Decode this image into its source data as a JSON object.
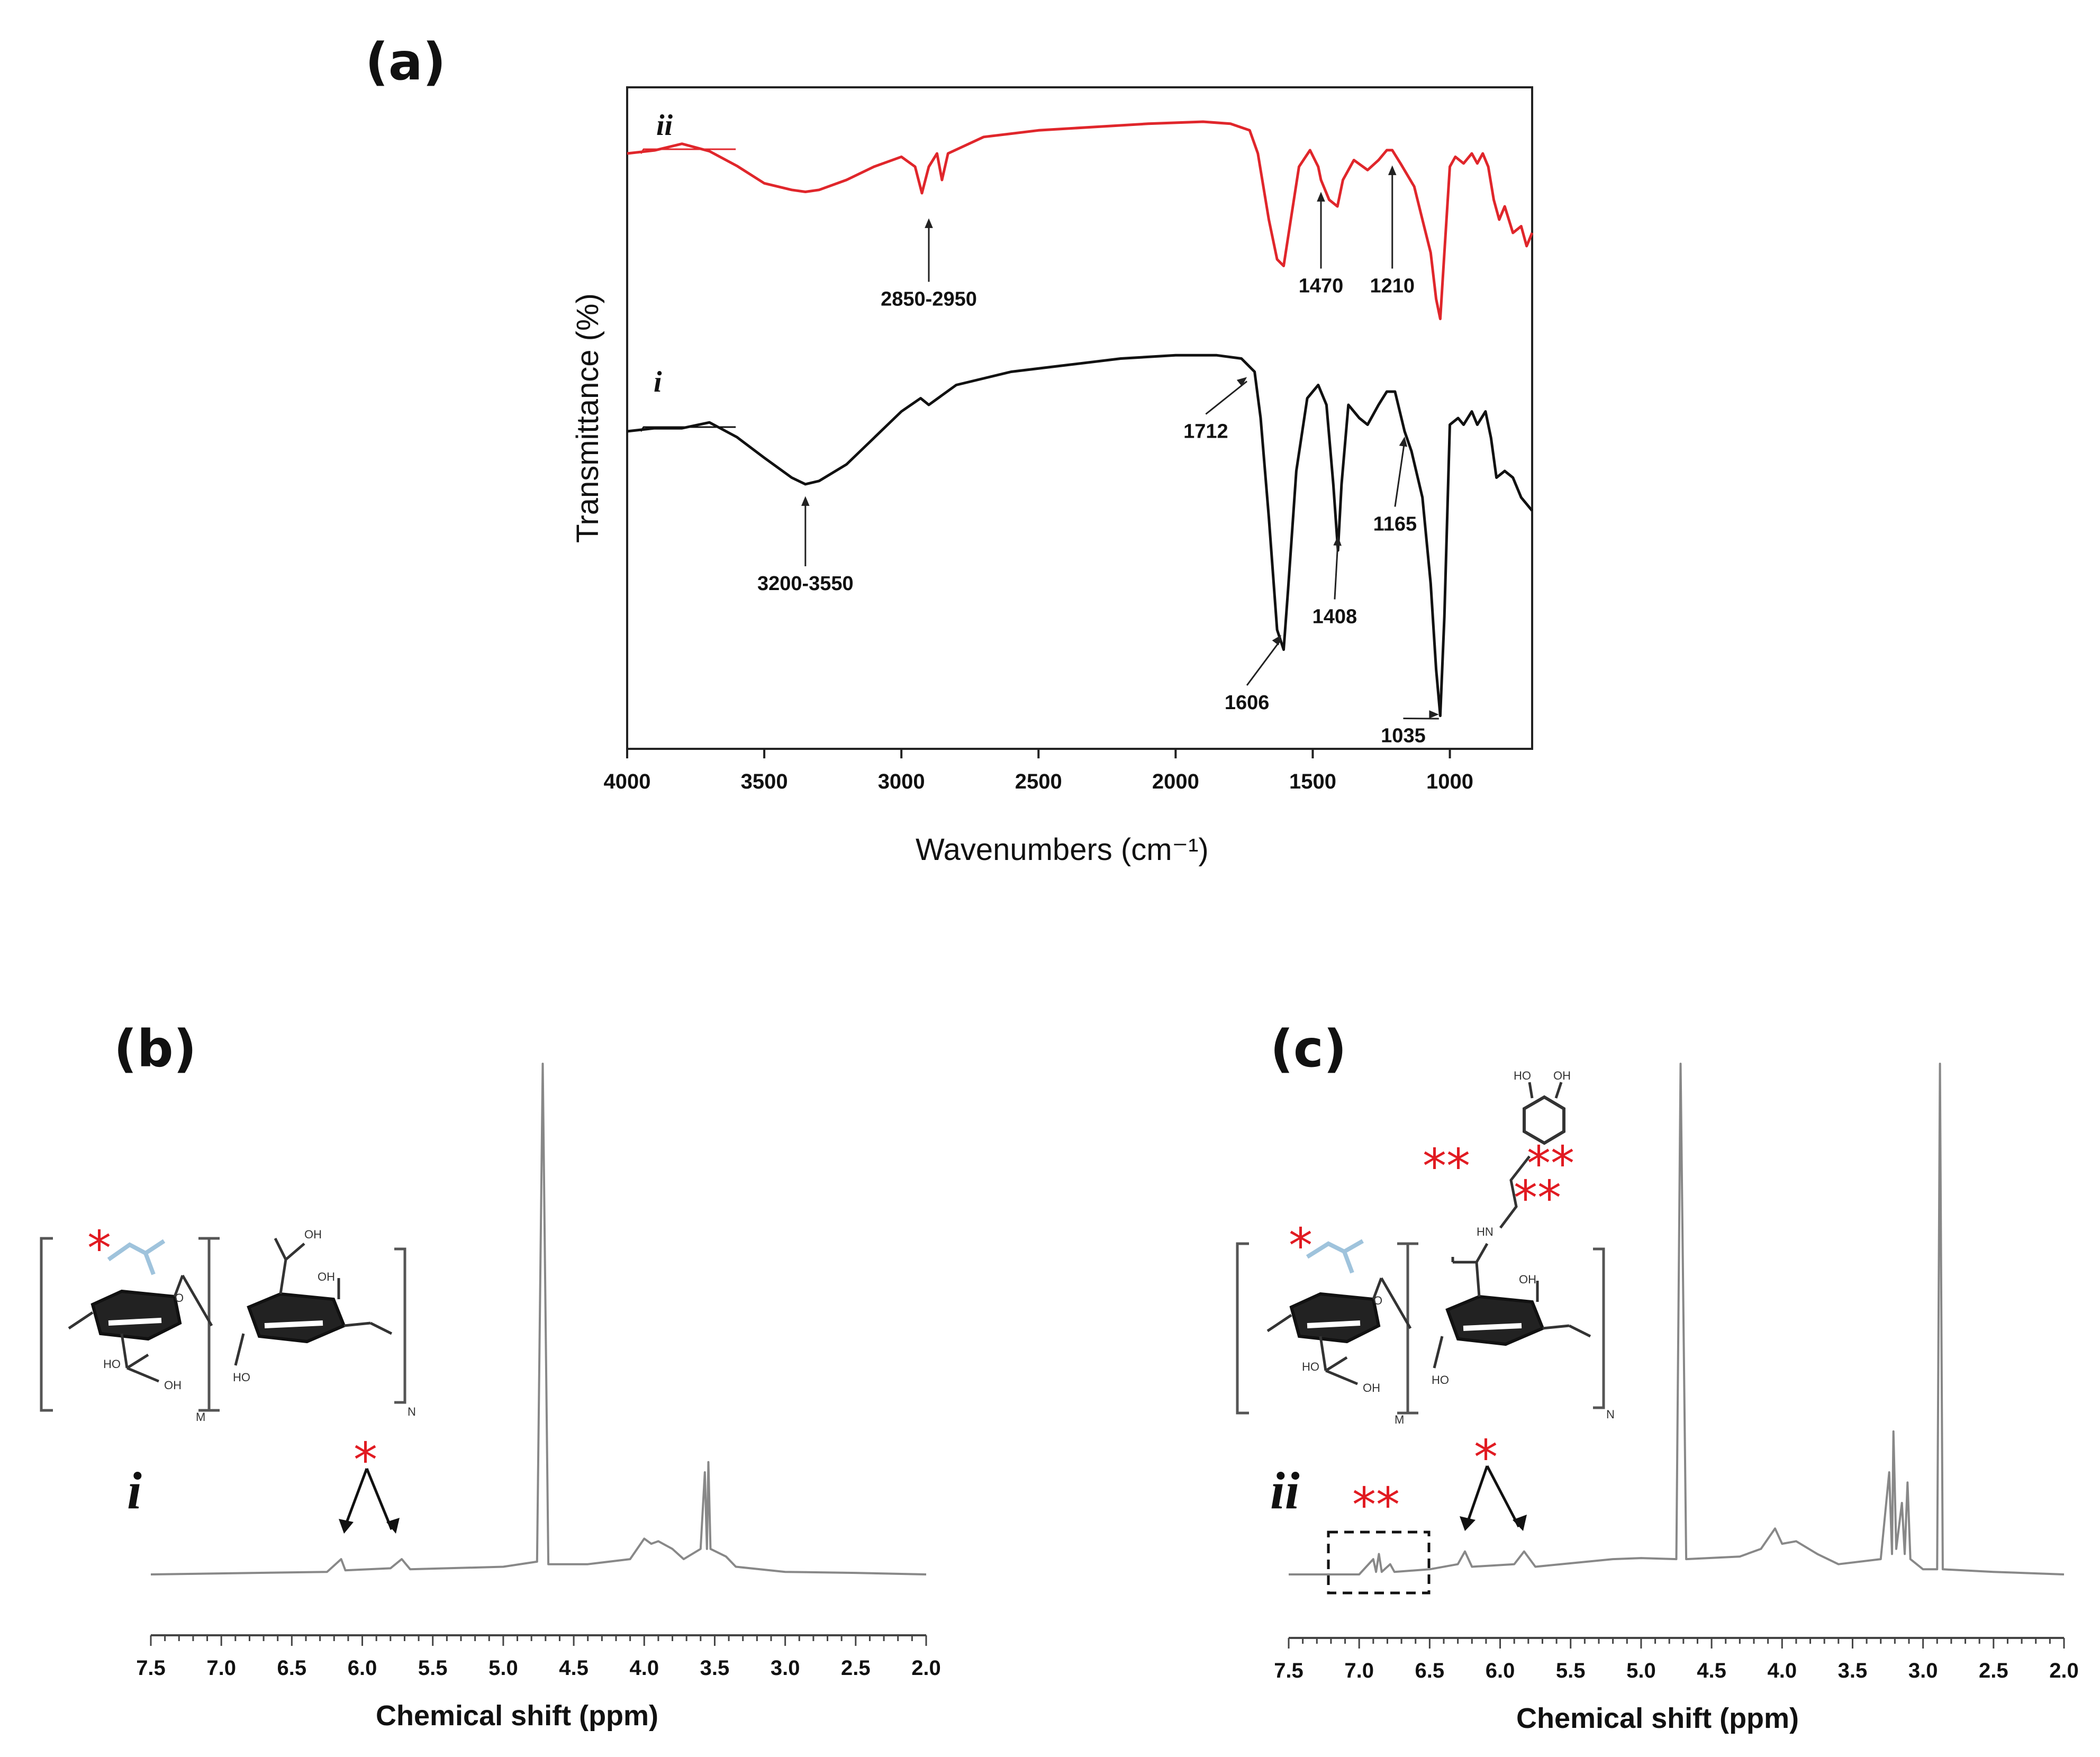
{
  "panel_a_label": "(a)",
  "panel_b_label": "(b)",
  "panel_c_label": "(c)",
  "colors": {
    "series_i": "#111111",
    "series_ii": "#e0262b",
    "nmr": "#888888",
    "star": "#e11b22",
    "structure_faded": "#9fc3dc"
  },
  "chart_data": [
    {
      "id": "ftir",
      "type": "line",
      "title": "",
      "xlabel": "Wavenumbers (cm⁻¹)",
      "ylabel": "Transmittance (%)",
      "xlim": [
        4000,
        700
      ],
      "xticks": [
        4000,
        3500,
        3000,
        2500,
        2000,
        1500,
        1000
      ],
      "ylim": [
        0,
        100
      ],
      "grid": false,
      "series": [
        {
          "name": "i",
          "label": "i",
          "points": [
            [
              4000,
              48
            ],
            [
              3900,
              48
            ],
            [
              3800,
              48
            ],
            [
              3700,
              49
            ],
            [
              3600,
              47
            ],
            [
              3500,
              44
            ],
            [
              3400,
              41
            ],
            [
              3350,
              40
            ],
            [
              3300,
              40.5
            ],
            [
              3200,
              43
            ],
            [
              3100,
              47
            ],
            [
              3000,
              51
            ],
            [
              2930,
              53
            ],
            [
              2900,
              52
            ],
            [
              2800,
              55
            ],
            [
              2600,
              57
            ],
            [
              2400,
              58
            ],
            [
              2200,
              59
            ],
            [
              2000,
              59.5
            ],
            [
              1850,
              59.5
            ],
            [
              1760,
              59
            ],
            [
              1712,
              57
            ],
            [
              1690,
              50
            ],
            [
              1660,
              35
            ],
            [
              1630,
              18
            ],
            [
              1606,
              15
            ],
            [
              1590,
              24
            ],
            [
              1560,
              42
            ],
            [
              1520,
              53
            ],
            [
              1480,
              55
            ],
            [
              1450,
              52
            ],
            [
              1425,
              40
            ],
            [
              1408,
              30
            ],
            [
              1395,
              40
            ],
            [
              1370,
              52
            ],
            [
              1330,
              50
            ],
            [
              1300,
              49
            ],
            [
              1260,
              52
            ],
            [
              1230,
              54
            ],
            [
              1200,
              54
            ],
            [
              1165,
              48
            ],
            [
              1140,
              45
            ],
            [
              1100,
              38
            ],
            [
              1070,
              25
            ],
            [
              1050,
              12
            ],
            [
              1035,
              5
            ],
            [
              1020,
              20
            ],
            [
              1000,
              49
            ],
            [
              970,
              50
            ],
            [
              950,
              49
            ],
            [
              920,
              51
            ],
            [
              900,
              49
            ],
            [
              870,
              51
            ],
            [
              850,
              47
            ],
            [
              830,
              41
            ],
            [
              800,
              42
            ],
            [
              770,
              41
            ],
            [
              740,
              38
            ],
            [
              700,
              36
            ]
          ]
        },
        {
          "name": "ii",
          "label": "ii",
          "points": [
            [
              4000,
              90
            ],
            [
              3900,
              90
            ],
            [
              3800,
              91
            ],
            [
              3700,
              90
            ],
            [
              3600,
              88
            ],
            [
              3500,
              85.5
            ],
            [
              3400,
              84.5
            ],
            [
              3350,
              84.2
            ],
            [
              3300,
              84.5
            ],
            [
              3200,
              86
            ],
            [
              3100,
              88
            ],
            [
              3000,
              89.5
            ],
            [
              2950,
              88
            ],
            [
              2925,
              84
            ],
            [
              2900,
              88
            ],
            [
              2870,
              90
            ],
            [
              2852,
              86
            ],
            [
              2830,
              90
            ],
            [
              2700,
              92.5
            ],
            [
              2500,
              93.5
            ],
            [
              2300,
              94
            ],
            [
              2100,
              94.5
            ],
            [
              1900,
              94.8
            ],
            [
              1800,
              94.5
            ],
            [
              1730,
              93.5
            ],
            [
              1700,
              90
            ],
            [
              1660,
              80
            ],
            [
              1630,
              74
            ],
            [
              1606,
              73
            ],
            [
              1580,
              80
            ],
            [
              1550,
              88
            ],
            [
              1510,
              90.5
            ],
            [
              1480,
              88
            ],
            [
              1470,
              86
            ],
            [
              1440,
              83
            ],
            [
              1410,
              82
            ],
            [
              1390,
              86
            ],
            [
              1350,
              89
            ],
            [
              1300,
              87.5
            ],
            [
              1260,
              89
            ],
            [
              1230,
              90.5
            ],
            [
              1210,
              90.5
            ],
            [
              1180,
              88.5
            ],
            [
              1130,
              85
            ],
            [
              1100,
              80
            ],
            [
              1070,
              75
            ],
            [
              1050,
              68
            ],
            [
              1035,
              65
            ],
            [
              1020,
              75
            ],
            [
              1000,
              88
            ],
            [
              980,
              89.5
            ],
            [
              950,
              88.5
            ],
            [
              920,
              90
            ],
            [
              900,
              88.5
            ],
            [
              880,
              90
            ],
            [
              860,
              88
            ],
            [
              840,
              83
            ],
            [
              820,
              80
            ],
            [
              800,
              82
            ],
            [
              770,
              78
            ],
            [
              740,
              79
            ],
            [
              720,
              76
            ],
            [
              700,
              78
            ]
          ]
        }
      ],
      "annotations": [
        {
          "text": "2850-2950",
          "series": "ii"
        },
        {
          "text": "1470",
          "series": "ii"
        },
        {
          "text": "1210",
          "series": "ii"
        },
        {
          "text": "3200-3550",
          "series": "i"
        },
        {
          "text": "1712",
          "series": "i"
        },
        {
          "text": "1606",
          "series": "i"
        },
        {
          "text": "1408",
          "series": "i"
        },
        {
          "text": "1165",
          "series": "i"
        },
        {
          "text": "1035",
          "series": "i"
        }
      ]
    },
    {
      "id": "nmr_i",
      "type": "line",
      "title": "",
      "xlabel": "Chemical shift (ppm)",
      "ylabel": "",
      "xlim": [
        7.5,
        2.0
      ],
      "xticks": [
        7.5,
        7.0,
        6.5,
        6.0,
        5.5,
        5.0,
        4.5,
        4.0,
        3.5,
        3.0,
        2.5,
        2.0
      ],
      "ylim": [
        -2,
        100
      ],
      "series": [
        {
          "name": "i",
          "points": [
            [
              7.5,
              0
            ],
            [
              6.25,
              0.5
            ],
            [
              6.15,
              3
            ],
            [
              6.12,
              0.8
            ],
            [
              5.8,
              1.2
            ],
            [
              5.72,
              3
            ],
            [
              5.66,
              1
            ],
            [
              5.0,
              1.5
            ],
            [
              4.76,
              2.5
            ],
            [
              4.72,
              100
            ],
            [
              4.68,
              2
            ],
            [
              4.4,
              2
            ],
            [
              4.1,
              3
            ],
            [
              4.0,
              7
            ],
            [
              3.95,
              6
            ],
            [
              3.9,
              6.5
            ],
            [
              3.8,
              5
            ],
            [
              3.72,
              3
            ],
            [
              3.6,
              5
            ],
            [
              3.57,
              20
            ],
            [
              3.555,
              5
            ],
            [
              3.545,
              22
            ],
            [
              3.53,
              5
            ],
            [
              3.42,
              3.5
            ],
            [
              3.35,
              1.5
            ],
            [
              3.0,
              0.5
            ],
            [
              2.5,
              0.3
            ],
            [
              2.0,
              0
            ]
          ]
        }
      ],
      "annotations": [
        {
          "text": "*"
        }
      ],
      "series_label": "i"
    },
    {
      "id": "nmr_ii",
      "type": "line",
      "title": "",
      "xlabel": "Chemical shift (ppm)",
      "ylabel": "",
      "xlim": [
        7.5,
        2.0
      ],
      "xticks": [
        7.5,
        7.0,
        6.5,
        6.0,
        5.5,
        5.0,
        4.5,
        4.0,
        3.5,
        3.0,
        2.5,
        2.0
      ],
      "ylim": [
        -2,
        100
      ],
      "series": [
        {
          "name": "ii",
          "points": [
            [
              7.5,
              0
            ],
            [
              7.0,
              0
            ],
            [
              6.9,
              3
            ],
            [
              6.88,
              0.5
            ],
            [
              6.86,
              4
            ],
            [
              6.84,
              0.5
            ],
            [
              6.78,
              2
            ],
            [
              6.75,
              0.5
            ],
            [
              6.5,
              1
            ],
            [
              6.3,
              2
            ],
            [
              6.25,
              4.5
            ],
            [
              6.2,
              1.5
            ],
            [
              5.9,
              2
            ],
            [
              5.83,
              4.5
            ],
            [
              5.75,
              1.5
            ],
            [
              5.2,
              3
            ],
            [
              5.0,
              3.2
            ],
            [
              4.75,
              3
            ],
            [
              4.72,
              100
            ],
            [
              4.68,
              3
            ],
            [
              4.3,
              3.5
            ],
            [
              4.15,
              5
            ],
            [
              4.05,
              9
            ],
            [
              4.0,
              6
            ],
            [
              3.9,
              6.5
            ],
            [
              3.75,
              4
            ],
            [
              3.6,
              2
            ],
            [
              3.3,
              3
            ],
            [
              3.24,
              20
            ],
            [
              3.22,
              4
            ],
            [
              3.21,
              28
            ],
            [
              3.19,
              5
            ],
            [
              3.15,
              14
            ],
            [
              3.13,
              4
            ],
            [
              3.11,
              18
            ],
            [
              3.09,
              3
            ],
            [
              3.0,
              1
            ],
            [
              2.9,
              1
            ],
            [
              2.88,
              100
            ],
            [
              2.86,
              1
            ],
            [
              2.5,
              0.5
            ],
            [
              2.0,
              0
            ]
          ]
        }
      ],
      "annotations": [
        {
          "text": "*"
        },
        {
          "text": "**"
        }
      ],
      "series_label": "ii"
    }
  ],
  "structure": {
    "labels": {
      "oh": "OH",
      "ho": "HO",
      "o": "O",
      "hn": "HN",
      "m": "M",
      "n": "N"
    },
    "markers": {
      "single": "*",
      "double": "**"
    }
  }
}
